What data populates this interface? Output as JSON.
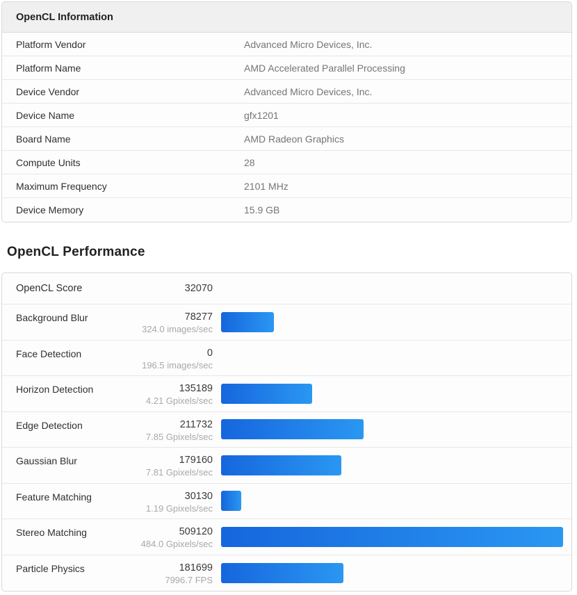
{
  "info": {
    "title": "OpenCL Information",
    "rows": [
      {
        "label": "Platform Vendor",
        "value": "Advanced Micro Devices, Inc."
      },
      {
        "label": "Platform Name",
        "value": "AMD Accelerated Parallel Processing"
      },
      {
        "label": "Device Vendor",
        "value": "Advanced Micro Devices, Inc."
      },
      {
        "label": "Device Name",
        "value": "gfx1201"
      },
      {
        "label": "Board Name",
        "value": "AMD Radeon Graphics"
      },
      {
        "label": "Compute Units",
        "value": "28"
      },
      {
        "label": "Maximum Frequency",
        "value": "2101 MHz"
      },
      {
        "label": "Device Memory",
        "value": "15.9 GB"
      }
    ]
  },
  "performance": {
    "title": "OpenCL Performance",
    "score_label": "OpenCL Score",
    "score": "32070",
    "bar_color_start": "#1666dd",
    "bar_color_end": "#2a97f2",
    "max_score": 509120,
    "benchmarks": [
      {
        "name": "Background Blur",
        "score": 78277,
        "rate": "324.0 images/sec"
      },
      {
        "name": "Face Detection",
        "score": 0,
        "rate": "196.5 images/sec"
      },
      {
        "name": "Horizon Detection",
        "score": 135189,
        "rate": "4.21 Gpixels/sec"
      },
      {
        "name": "Edge Detection",
        "score": 211732,
        "rate": "7.85 Gpixels/sec"
      },
      {
        "name": "Gaussian Blur",
        "score": 179160,
        "rate": "7.81 Gpixels/sec"
      },
      {
        "name": "Feature Matching",
        "score": 30130,
        "rate": "1.19 Gpixels/sec"
      },
      {
        "name": "Stereo Matching",
        "score": 509120,
        "rate": "484.0 Gpixels/sec"
      },
      {
        "name": "Particle Physics",
        "score": 181699,
        "rate": "7996.7 FPS"
      }
    ]
  }
}
